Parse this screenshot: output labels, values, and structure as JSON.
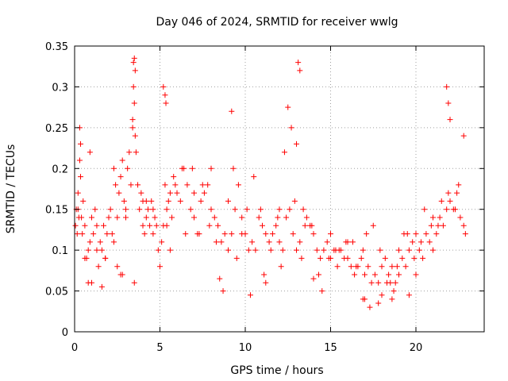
{
  "chart_data": {
    "type": "scatter",
    "title": "Day 046 of 2024, SRMTID for receiver wwlg",
    "xlabel": "GPS time / hours",
    "ylabel": "SRMTID / TECUs",
    "xlim": [
      0,
      24
    ],
    "ylim": [
      0,
      0.35
    ],
    "xticks": [
      0,
      5,
      10,
      15,
      20
    ],
    "xtick_labels": [
      "0",
      "5",
      "10",
      "15",
      "20"
    ],
    "yticks": [
      0,
      0.05,
      0.1,
      0.15,
      0.2,
      0.25,
      0.3,
      0.35
    ],
    "ytick_labels": [
      "0",
      "0.05",
      "0.1",
      "0.15",
      "0.2",
      "0.25",
      "0.3",
      "0.35"
    ],
    "grid": true,
    "marker": "+",
    "marker_color": "#ff0000",
    "frame_color": "#000000",
    "grid_color": "#a0a0a0",
    "series": [
      {
        "name": "SRMTID",
        "x": [
          0.05,
          0.1,
          0.15,
          0.2,
          0.25,
          0.3,
          0.35,
          0.4,
          0.45,
          0.5,
          0.6,
          0.7,
          0.8,
          0.9,
          1.0,
          1.1,
          1.2,
          1.3,
          1.4,
          1.5,
          1.6,
          1.7,
          1.8,
          1.9,
          2.0,
          2.1,
          2.2,
          2.3,
          2.4,
          2.5,
          2.6,
          2.7,
          2.8,
          2.9,
          3.0,
          3.1,
          3.2,
          3.3,
          3.4,
          3.45,
          3.5,
          3.55,
          3.6,
          3.7,
          3.8,
          3.9,
          4.0,
          4.1,
          4.2,
          4.3,
          4.4,
          4.5,
          4.6,
          4.7,
          4.8,
          4.9,
          5.0,
          5.1,
          5.2,
          5.3,
          5.4,
          5.5,
          5.6,
          5.7,
          5.8,
          5.9,
          6.0,
          6.2,
          6.4,
          6.6,
          6.8,
          7.0,
          7.2,
          7.4,
          7.6,
          7.8,
          8.0,
          8.2,
          8.4,
          8.6,
          8.8,
          9.0,
          9.2,
          9.4,
          9.6,
          9.8,
          10.0,
          10.2,
          10.4,
          10.6,
          10.8,
          11.0,
          11.2,
          11.4,
          11.6,
          11.8,
          12.0,
          12.2,
          12.4,
          12.6,
          12.8,
          13.0,
          13.2,
          13.4,
          13.6,
          13.8,
          14.0,
          14.2,
          14.4,
          14.6,
          14.8,
          15.0,
          15.2,
          15.4,
          15.6,
          15.8,
          16.0,
          16.2,
          16.4,
          16.6,
          16.8,
          17.0,
          17.2,
          17.4,
          17.6,
          17.8,
          18.0,
          18.2,
          18.4,
          18.6,
          18.8,
          19.0,
          19.2,
          19.4,
          19.6,
          19.8,
          20.0,
          20.2,
          20.4,
          20.6,
          20.8,
          21.0,
          21.2,
          21.4,
          21.6,
          21.8,
          22.0,
          22.2,
          22.4,
          22.6,
          22.8,
          0.2,
          0.3,
          0.35,
          3.4,
          3.45,
          3.5,
          3.55,
          5.2,
          5.3,
          5.35,
          9.2,
          9.3,
          12.3,
          12.5,
          12.7,
          13.0,
          13.1,
          13.2,
          21.8,
          21.9,
          22.0,
          22.8,
          0.9,
          1.0,
          1.6,
          2.7,
          2.8,
          8.5,
          8.7,
          10.3,
          11.1,
          11.2,
          14.0,
          14.5,
          16.9,
          17.0,
          17.3,
          17.8,
          18.0,
          18.6,
          18.7,
          19.6,
          20.0,
          3.5,
          4.0,
          6.5,
          7.0,
          7.5,
          8.0,
          9.0,
          10.5,
          12.0,
          13.5,
          15.0,
          15.5,
          16.0,
          16.5,
          18.5,
          19.0,
          19.5,
          20.5,
          21.0,
          21.5,
          22.5,
          0.6,
          1.3,
          2.3,
          4.6,
          5.6,
          6.9,
          7.9,
          9.8,
          10.9,
          11.9,
          12.9,
          13.9,
          14.9,
          15.9,
          16.9,
          17.9,
          18.9,
          19.9,
          20.9,
          21.9,
          22.9,
          0.8,
          1.8,
          2.5,
          3.0,
          4.2,
          5.4,
          6.3,
          7.3,
          8.3,
          9.5,
          10.1,
          11.5,
          12.1,
          13.3,
          14.3,
          15.3,
          16.3,
          17.1,
          17.5,
          18.3,
          19.3,
          20.3,
          21.3,
          22.3
        ],
        "y": [
          0.13,
          0.15,
          0.12,
          0.17,
          0.14,
          0.21,
          0.19,
          0.14,
          0.12,
          0.16,
          0.13,
          0.09,
          0.06,
          0.11,
          0.14,
          0.12,
          0.15,
          0.1,
          0.08,
          0.11,
          0.1,
          0.13,
          0.09,
          0.12,
          0.14,
          0.15,
          0.12,
          0.2,
          0.18,
          0.14,
          0.17,
          0.19,
          0.21,
          0.16,
          0.15,
          0.2,
          0.22,
          0.18,
          0.25,
          0.3,
          0.28,
          0.24,
          0.22,
          0.18,
          0.15,
          0.17,
          0.13,
          0.12,
          0.14,
          0.15,
          0.13,
          0.16,
          0.12,
          0.14,
          0.13,
          0.1,
          0.08,
          0.11,
          0.13,
          0.18,
          0.15,
          0.16,
          0.17,
          0.14,
          0.19,
          0.18,
          0.17,
          0.16,
          0.2,
          0.18,
          0.15,
          0.14,
          0.12,
          0.16,
          0.17,
          0.18,
          0.15,
          0.14,
          0.13,
          0.11,
          0.12,
          0.1,
          0.12,
          0.15,
          0.18,
          0.14,
          0.12,
          0.1,
          0.11,
          0.1,
          0.14,
          0.13,
          0.12,
          0.11,
          0.12,
          0.13,
          0.11,
          0.1,
          0.14,
          0.15,
          0.12,
          0.1,
          0.11,
          0.15,
          0.14,
          0.13,
          0.12,
          0.1,
          0.09,
          0.1,
          0.11,
          0.09,
          0.1,
          0.08,
          0.1,
          0.09,
          0.11,
          0.08,
          0.07,
          0.08,
          0.09,
          0.07,
          0.08,
          0.06,
          0.07,
          0.06,
          0.08,
          0.09,
          0.07,
          0.08,
          0.06,
          0.1,
          0.09,
          0.08,
          0.1,
          0.11,
          0.12,
          0.1,
          0.09,
          0.12,
          0.11,
          0.1,
          0.12,
          0.14,
          0.13,
          0.15,
          0.16,
          0.15,
          0.17,
          0.14,
          0.13,
          0.15,
          0.25,
          0.23,
          0.26,
          0.33,
          0.335,
          0.32,
          0.3,
          0.29,
          0.28,
          0.27,
          0.2,
          0.22,
          0.275,
          0.25,
          0.23,
          0.33,
          0.32,
          0.3,
          0.28,
          0.26,
          0.24,
          0.22,
          0.06,
          0.055,
          0.07,
          0.07,
          0.065,
          0.05,
          0.045,
          0.07,
          0.06,
          0.065,
          0.05,
          0.04,
          0.04,
          0.03,
          0.035,
          0.045,
          0.04,
          0.05,
          0.045,
          0.07,
          0.06,
          0.16,
          0.12,
          0.17,
          0.18,
          0.2,
          0.16,
          0.19,
          0.15,
          0.13,
          0.12,
          0.1,
          0.09,
          0.08,
          0.06,
          0.07,
          0.12,
          0.15,
          0.14,
          0.16,
          0.18,
          0.09,
          0.13,
          0.11,
          0.15,
          0.1,
          0.2,
          0.13,
          0.12,
          0.15,
          0.14,
          0.16,
          0.13,
          0.09,
          0.11,
          0.1,
          0.1,
          0.08,
          0.09,
          0.13,
          0.17,
          0.12,
          0.1,
          0.09,
          0.08,
          0.14,
          0.16,
          0.13,
          0.2,
          0.12,
          0.11,
          0.09,
          0.15,
          0.1,
          0.08,
          0.09,
          0.07,
          0.1,
          0.11,
          0.12,
          0.13,
          0.06,
          0.12,
          0.11,
          0.13,
          0.15
        ]
      }
    ]
  }
}
